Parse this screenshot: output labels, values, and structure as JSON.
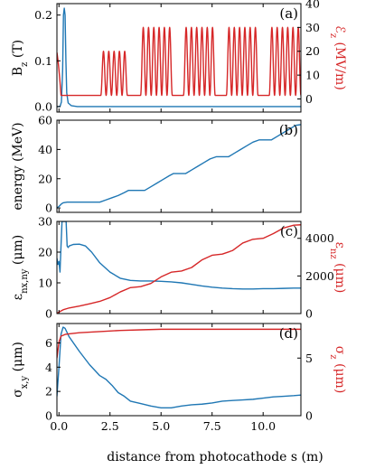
{
  "colors": {
    "blue": "#1f77b4",
    "red": "#d62728"
  },
  "xaxis": {
    "label": "distance from photocathode s (m)",
    "ticks": [
      0.0,
      2.5,
      5.0,
      7.5,
      10.0
    ],
    "tick_labels": [
      "0.0",
      "2.5",
      "5.0",
      "7.5",
      "10.0"
    ],
    "xlim": [
      -0.1,
      11.85
    ]
  },
  "chart_data": [
    {
      "type": "line",
      "panel_label": "(a)",
      "ylabel_left": "B_z (T)",
      "ylabel_right": "ℰ_z (MV/m)",
      "ylim_left": [
        -0.012,
        0.225
      ],
      "ylim_right": [
        -5.5,
        40
      ],
      "yticks_left": [
        0.0,
        0.1,
        0.2
      ],
      "yticks_left_labels": [
        "0.0",
        "0.1",
        "0.2"
      ],
      "yticks_right": [
        0,
        10,
        20,
        30,
        40
      ],
      "yticks_right_labels": [
        "0",
        "10",
        "20",
        "30",
        "40"
      ],
      "series": [
        {
          "axis": "left",
          "color": "#1f77b4",
          "x": [
            -0.1,
            0.05,
            0.12,
            0.18,
            0.22,
            0.26,
            0.3,
            0.34,
            0.38,
            0.45,
            0.6,
            0.9,
            2,
            6,
            11.85
          ],
          "y": [
            0.0,
            0.0,
            0.01,
            0.08,
            0.2,
            0.215,
            0.2,
            0.1,
            0.03,
            0.008,
            0.002,
            0.0,
            0.0,
            0.0,
            0.0
          ]
        },
        {
          "axis": "right",
          "color": "#d62728",
          "rf_baseline": 1.5,
          "gun": {
            "x_start": -0.1,
            "x_end": 0.22,
            "amplitude": 15
          },
          "sections": [
            {
              "x_start": 2.05,
              "x_end": 3.35,
              "cycles": 5,
              "peak": 20
            },
            {
              "x_start": 4.0,
              "x_end": 5.55,
              "cycles": 6,
              "peak": 30
            },
            {
              "x_start": 6.1,
              "x_end": 7.65,
              "cycles": 6,
              "peak": 30
            },
            {
              "x_start": 8.2,
              "x_end": 9.75,
              "cycles": 6,
              "peak": 30
            },
            {
              "x_start": 10.3,
              "x_end": 11.85,
              "cycles": 6,
              "peak": 30
            }
          ]
        }
      ]
    },
    {
      "type": "line",
      "panel_label": "(b)",
      "ylabel_left": "energy (MeV)",
      "ylim_left": [
        -3,
        60
      ],
      "yticks_left": [
        0,
        20,
        40,
        60
      ],
      "yticks_left_labels": [
        "0",
        "20",
        "40",
        "60"
      ],
      "series": [
        {
          "axis": "left",
          "color": "#1f77b4",
          "x": [
            -0.1,
            0.0,
            0.1,
            0.2,
            0.4,
            2.0,
            2.3,
            2.6,
            2.9,
            3.2,
            3.4,
            4.2,
            4.5,
            4.8,
            5.1,
            5.4,
            5.6,
            6.2,
            6.5,
            6.8,
            7.1,
            7.4,
            7.7,
            8.3,
            8.6,
            8.9,
            9.2,
            9.5,
            9.8,
            10.4,
            10.7,
            11.0,
            11.3,
            11.6,
            11.85
          ],
          "y": [
            0.0,
            1.0,
            2.5,
            3.5,
            4.0,
            4.0,
            5.5,
            7.0,
            8.5,
            10.5,
            12.0,
            12.0,
            14.5,
            17.0,
            19.5,
            22.0,
            23.5,
            23.5,
            26.0,
            28.5,
            31.0,
            33.5,
            35.0,
            35.0,
            37.5,
            40.0,
            42.5,
            45.0,
            46.5,
            46.5,
            49.0,
            51.5,
            54.0,
            56.5,
            57.0
          ]
        }
      ]
    },
    {
      "type": "line",
      "panel_label": "(c)",
      "ylabel_left": "ε_{nx,ny} (μm)",
      "ylabel_right": "ε_{nz} (μm)",
      "ylim_left": [
        0,
        30
      ],
      "ylim_right": [
        0,
        4900
      ],
      "yticks_left": [
        0,
        10,
        20,
        30
      ],
      "yticks_left_labels": [
        "0",
        "10",
        "20",
        "30"
      ],
      "yticks_right": [
        0,
        2000,
        4000
      ],
      "yticks_right_labels": [
        "0",
        "2000",
        "4000"
      ],
      "series": [
        {
          "axis": "left",
          "color": "#1f77b4",
          "x": [
            -0.1,
            -0.05,
            0.0,
            0.05,
            0.1,
            0.15,
            0.2,
            0.25,
            0.3,
            0.35,
            0.4,
            0.45,
            0.5,
            0.7,
            1.0,
            1.3,
            1.6,
            2.0,
            2.5,
            3.0,
            3.5,
            4.0,
            4.5,
            5.0,
            5.5,
            6.0,
            6.5,
            7.0,
            7.5,
            8.0,
            8.5,
            9.0,
            9.5,
            10.0,
            10.5,
            11.0,
            11.5,
            11.85
          ],
          "y": [
            18,
            16,
            17,
            13.5,
            22,
            30,
            30,
            30,
            30,
            30,
            22,
            21.5,
            22,
            22.5,
            22.6,
            22,
            20,
            16.5,
            13.5,
            11.5,
            10.8,
            10.6,
            10.6,
            10.5,
            10.3,
            10.0,
            9.5,
            9.0,
            8.6,
            8.3,
            8.1,
            8.0,
            8.0,
            8.1,
            8.1,
            8.2,
            8.3,
            8.3
          ]
        },
        {
          "axis": "right",
          "color": "#d62728",
          "x": [
            -0.1,
            0.0,
            0.2,
            0.5,
            1.0,
            1.5,
            2.0,
            2.5,
            3.0,
            3.5,
            4.0,
            4.5,
            5.0,
            5.5,
            6.0,
            6.5,
            7.0,
            7.5,
            8.0,
            8.5,
            9.0,
            9.5,
            10.0,
            10.5,
            11.0,
            11.5,
            11.85
          ],
          "y": [
            10,
            80,
            200,
            300,
            400,
            520,
            650,
            850,
            1150,
            1380,
            1430,
            1600,
            1950,
            2200,
            2260,
            2450,
            2850,
            3100,
            3160,
            3350,
            3750,
            3950,
            4000,
            4250,
            4550,
            4700,
            4720
          ]
        }
      ]
    },
    {
      "type": "line",
      "panel_label": "(d)",
      "ylabel_left": "σ_{x,y} (μm)",
      "ylabel_right": "σ_z (μm)",
      "ylim_left": [
        0,
        7.6
      ],
      "ylim_right": [
        0,
        8.0
      ],
      "yticks_left": [
        0,
        2,
        4,
        6
      ],
      "yticks_left_labels": [
        "0",
        "2",
        "4",
        "6"
      ],
      "yticks_right": [
        0,
        5
      ],
      "yticks_right_labels": [
        "0",
        "5"
      ],
      "series": [
        {
          "axis": "left",
          "color": "#1f77b4",
          "x": [
            -0.1,
            0.0,
            0.1,
            0.2,
            0.3,
            0.5,
            1.0,
            1.5,
            2.0,
            2.3,
            2.6,
            2.9,
            3.2,
            3.5,
            4.0,
            4.5,
            5.0,
            5.5,
            6.0,
            6.5,
            7.0,
            7.5,
            8.0,
            8.5,
            9.0,
            9.5,
            10.0,
            10.5,
            11.0,
            11.5,
            11.85
          ],
          "y": [
            1.6,
            4.0,
            6.7,
            7.3,
            7.2,
            6.5,
            5.3,
            4.2,
            3.3,
            3.0,
            2.5,
            1.9,
            1.6,
            1.2,
            1.0,
            0.8,
            0.65,
            0.65,
            0.8,
            0.9,
            0.95,
            1.05,
            1.2,
            1.25,
            1.3,
            1.35,
            1.45,
            1.55,
            1.6,
            1.65,
            1.7
          ]
        },
        {
          "axis": "right",
          "color": "#d62728",
          "x": [
            -0.1,
            0.0,
            0.1,
            0.3,
            0.5,
            1.0,
            2.0,
            3.0,
            4.0,
            5.0,
            6.0,
            8.0,
            10.0,
            11.85
          ],
          "y": [
            5.0,
            6.4,
            6.9,
            7.05,
            7.1,
            7.2,
            7.3,
            7.4,
            7.45,
            7.5,
            7.5,
            7.5,
            7.5,
            7.5
          ]
        }
      ]
    }
  ]
}
